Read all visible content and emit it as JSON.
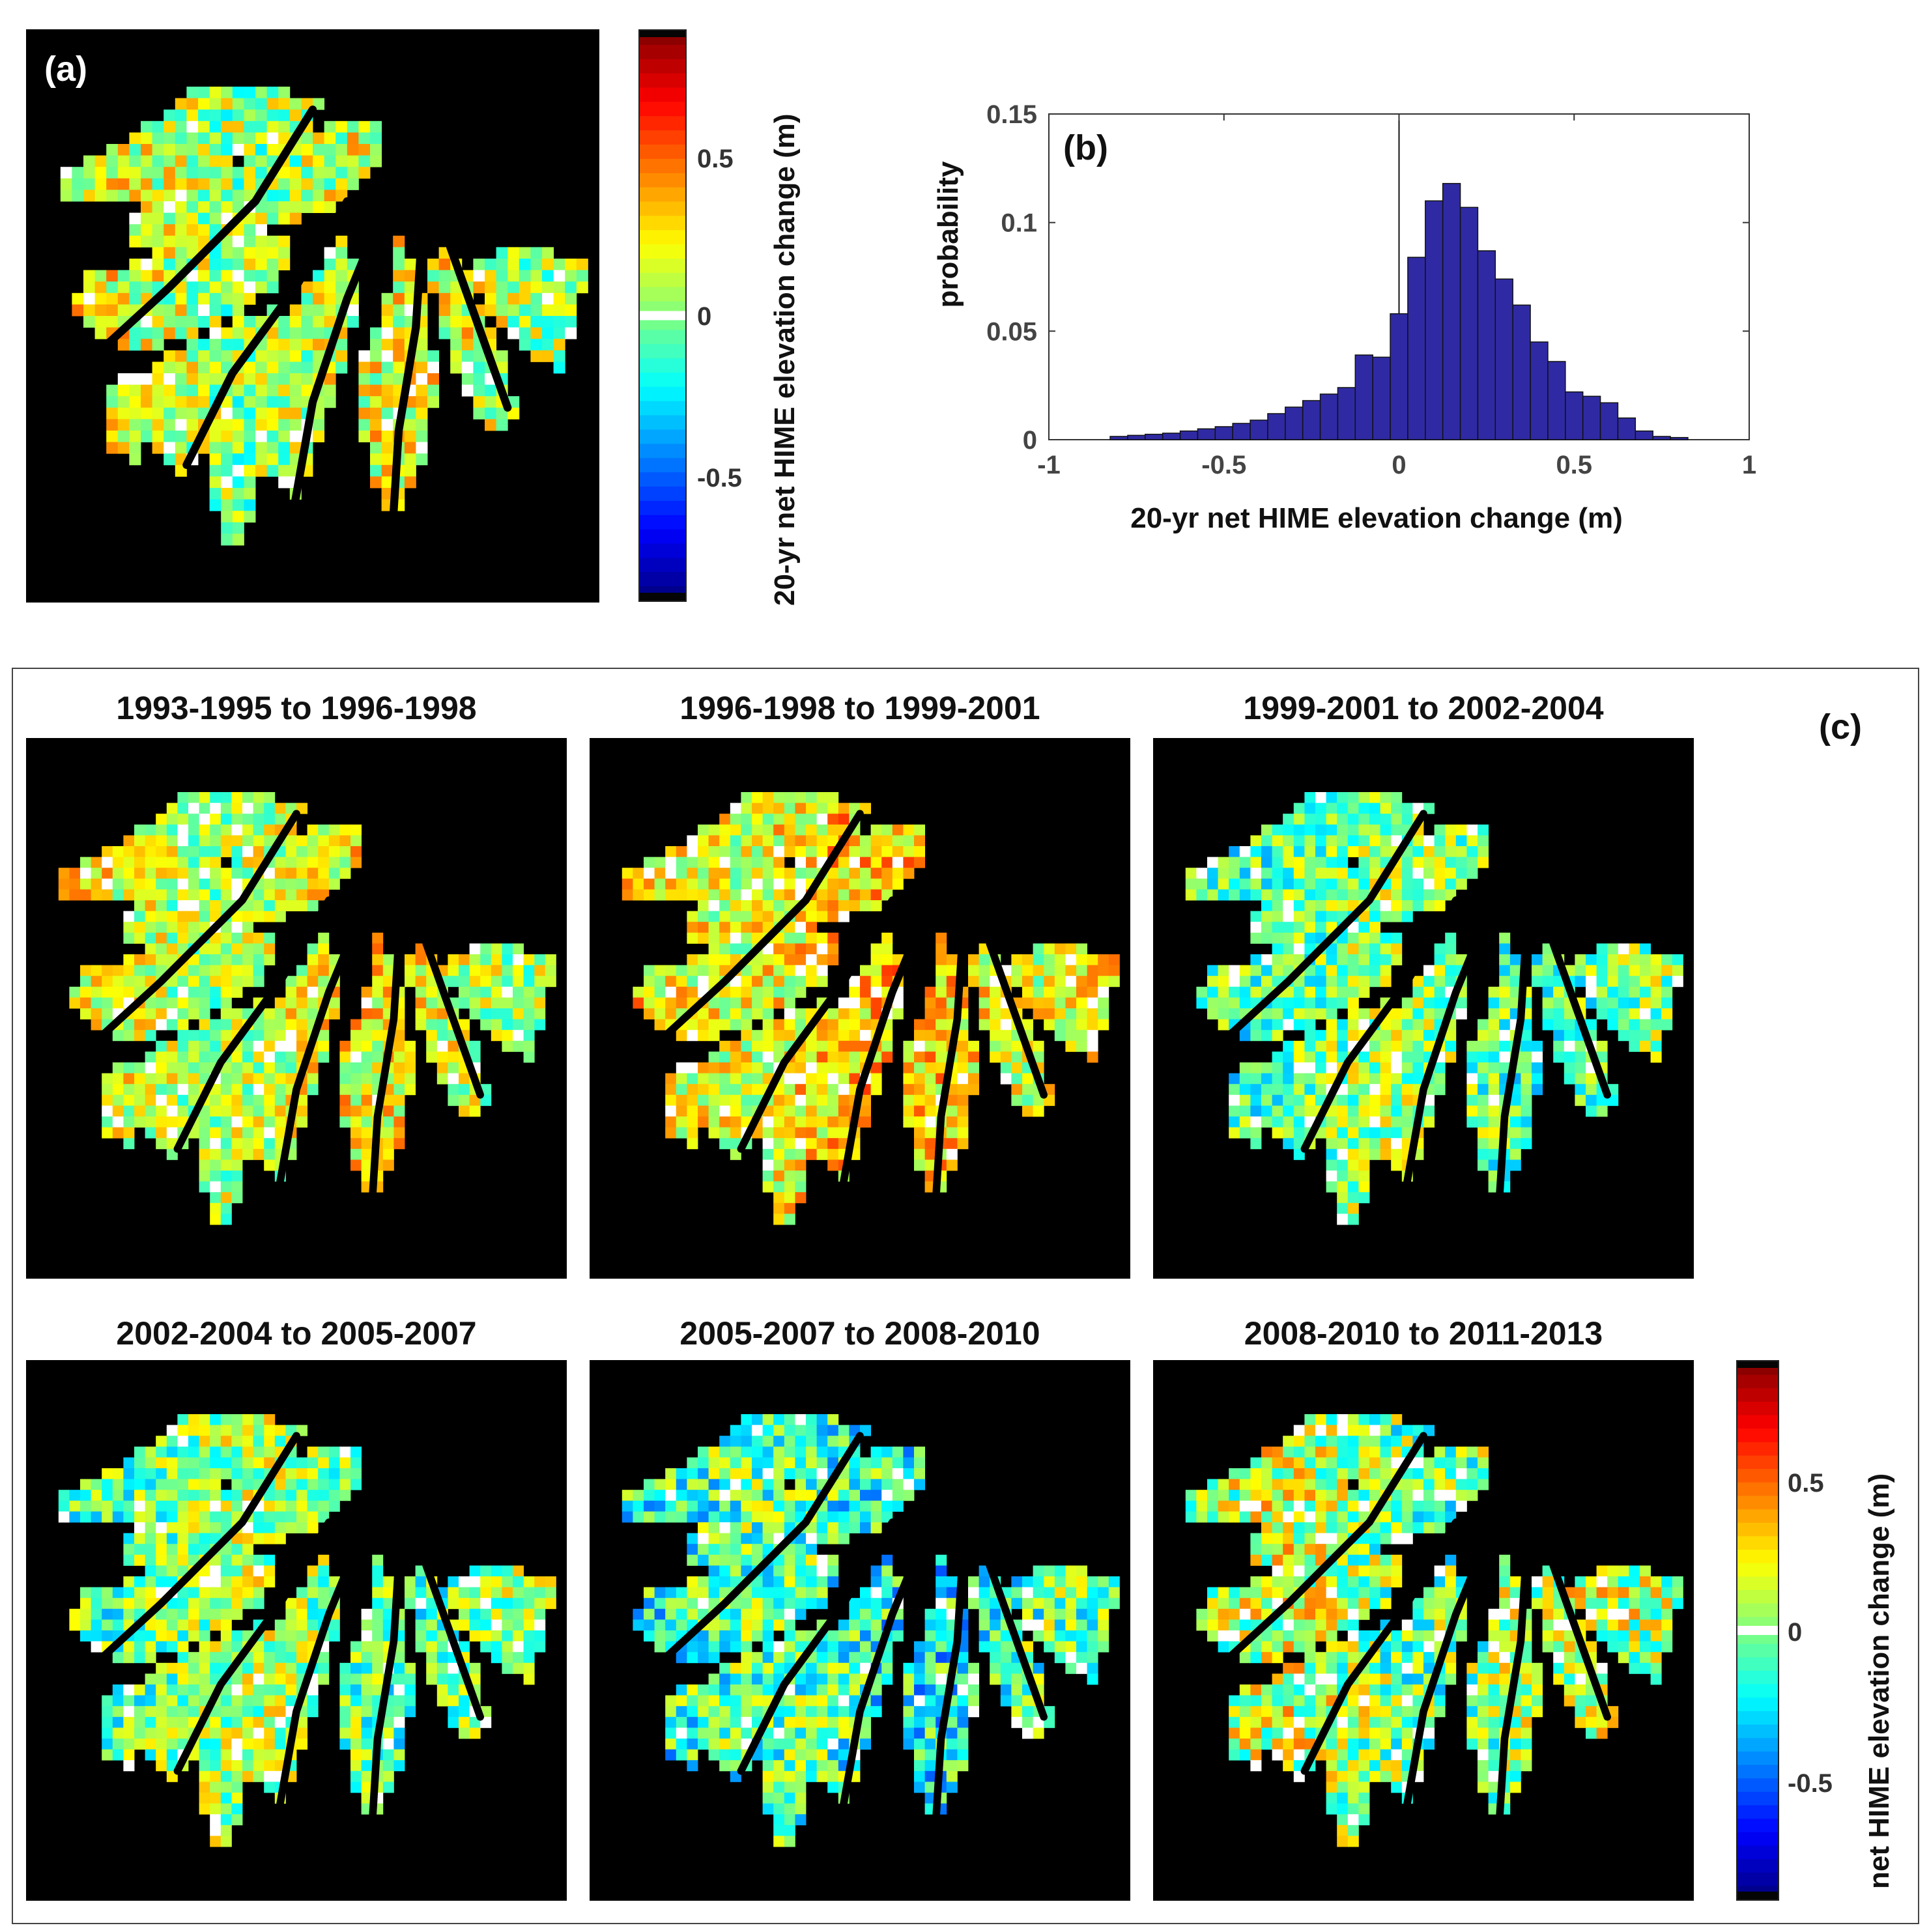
{
  "panel_a": {
    "letter": "(a)",
    "colorbar": {
      "label": "20-yr net HIME elevation change (m)",
      "ticks": [
        "0.5",
        "0",
        "-0.5"
      ],
      "tick_values": [
        0.5,
        0,
        -0.5
      ],
      "range": [
        -0.9,
        0.9
      ]
    }
  },
  "chart_data": {
    "type": "bar",
    "panel_letter": "(b)",
    "title": "",
    "xlabel": "20-yr net HIME elevation change (m)",
    "ylabel": "probability",
    "xlim": [
      -1,
      1
    ],
    "ylim": [
      0,
      0.15
    ],
    "xticks": [
      "-1",
      "-0.5",
      "0",
      "0.5",
      "1"
    ],
    "xtick_values": [
      -1,
      -0.5,
      0,
      0.5,
      1
    ],
    "yticks": [
      "0",
      "0.05",
      "0.1",
      "0.15"
    ],
    "ytick_values": [
      0,
      0.05,
      0.1,
      0.15
    ],
    "bin_width": 0.05,
    "bin_centers": [
      -0.8,
      -0.75,
      -0.7,
      -0.65,
      -0.6,
      -0.55,
      -0.5,
      -0.45,
      -0.4,
      -0.35,
      -0.3,
      -0.25,
      -0.2,
      -0.15,
      -0.1,
      -0.05,
      0,
      0.05,
      0.1,
      0.15,
      0.2,
      0.25,
      0.3,
      0.35,
      0.4,
      0.45,
      0.5,
      0.55,
      0.6,
      0.65,
      0.7,
      0.75,
      0.8
    ],
    "values": [
      0.0015,
      0.002,
      0.0025,
      0.003,
      0.004,
      0.005,
      0.006,
      0.0075,
      0.009,
      0.012,
      0.015,
      0.018,
      0.021,
      0.024,
      0.039,
      0.038,
      0.058,
      0.084,
      0.11,
      0.118,
      0.107,
      0.087,
      0.074,
      0.062,
      0.045,
      0.036,
      0.022,
      0.02,
      0.017,
      0.01,
      0.004,
      0.0015,
      0.001
    ],
    "bar_color": "#2f2aa3",
    "zero_line": true
  },
  "panel_c": {
    "letter": "(c)",
    "maps": [
      {
        "title": "1993-1995 to 1996-1998",
        "bias": 0.15,
        "spread": 0.55,
        "seed": 11
      },
      {
        "title": "1996-1998 to 1999-2001",
        "bias": 0.25,
        "spread": 0.55,
        "seed": 23
      },
      {
        "title": "1999-2001 to 2002-2004",
        "bias": -0.02,
        "spread": 0.6,
        "seed": 37
      },
      {
        "title": "2002-2004 to 2005-2007",
        "bias": 0.0,
        "spread": 0.6,
        "seed": 41
      },
      {
        "title": "2005-2007 to 2008-2010",
        "bias": -0.12,
        "spread": 0.7,
        "seed": 53
      },
      {
        "title": "2008-2010 to 2011-2013",
        "bias": 0.05,
        "spread": 0.7,
        "seed": 67
      }
    ],
    "colorbar": {
      "label": "net HIME elevation change (m)",
      "ticks": [
        "0.5",
        "0",
        "-0.5"
      ],
      "tick_values": [
        0.5,
        0,
        -0.5
      ],
      "range": [
        -0.9,
        0.9
      ]
    }
  },
  "panel_a_map": {
    "bias": 0.12,
    "spread": 0.6,
    "seed": 5
  }
}
